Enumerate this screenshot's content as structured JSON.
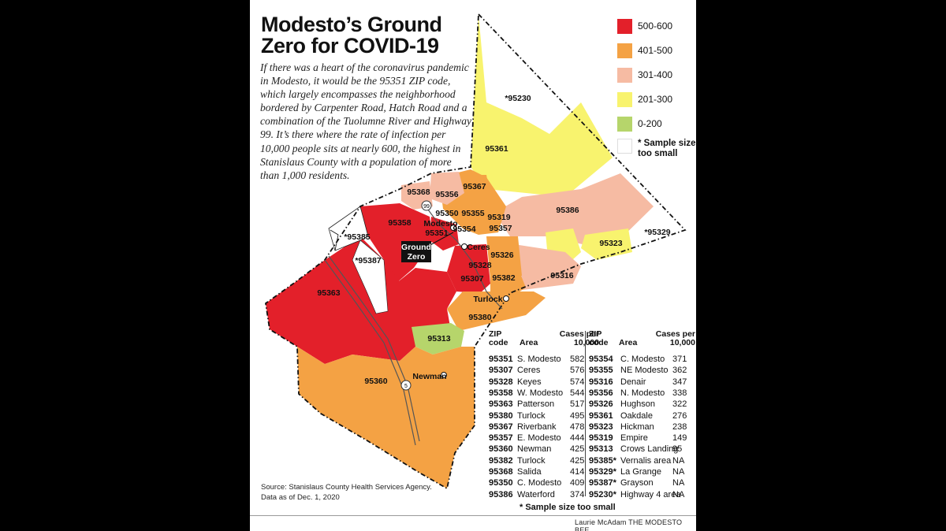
{
  "title_line1": "Modesto’s Ground",
  "title_line2": "Zero for COVID-19",
  "intro": "If there was a heart of the coronavirus pandemic in Modesto, it would be the 95351 ZIP code, which largely encompasses the neighborhood bordered by Carpenter Road, Hatch Road and a combination of the Tuolumne River and Highway 99. It’s there where the rate of infection per 10,000 people sits at nearly 600, the highest in Stanislaus County with a population of more than 1,000 residents.",
  "legend": [
    {
      "label": "500-600",
      "color": "#e3202a"
    },
    {
      "label": "401-500",
      "color": "#f4a244"
    },
    {
      "label": "301-400",
      "color": "#f6bba3"
    },
    {
      "label": "201-300",
      "color": "#f8f36e"
    },
    {
      "label": "0-200",
      "color": "#b6d56b"
    },
    {
      "label": "* Sample size too small",
      "color": "#ffffff"
    }
  ],
  "map": {
    "ground_zero_label": [
      "Ground",
      "Zero"
    ],
    "cities": [
      "Modesto",
      "Ceres",
      "Turlock",
      "Newman"
    ],
    "highways": [
      "99",
      "5"
    ],
    "zip_labels": [
      "*95230",
      "95361",
      "95368",
      "95356",
      "95367",
      "95350",
      "95355",
      "95319",
      "95386",
      "95358",
      "95351",
      "95354",
      "95357",
      "*95385",
      "*95387",
      "95326",
      "95323",
      "*95329",
      "95328",
      "95307",
      "95382",
      "95316",
      "95363",
      "95380",
      "95313",
      "95360"
    ]
  },
  "table": {
    "headers": {
      "zip": "ZIP code",
      "area": "Area",
      "cases": "Cases per 10,000"
    },
    "left": [
      {
        "zip": "95351",
        "area": "S. Modesto",
        "cases": "582"
      },
      {
        "zip": "95307",
        "area": "Ceres",
        "cases": "576"
      },
      {
        "zip": "95328",
        "area": "Keyes",
        "cases": "574"
      },
      {
        "zip": "95358",
        "area": "W. Modesto",
        "cases": "544"
      },
      {
        "zip": "95363",
        "area": "Patterson",
        "cases": "517"
      },
      {
        "zip": "95380",
        "area": "Turlock",
        "cases": "495"
      },
      {
        "zip": "95367",
        "area": "Riverbank",
        "cases": "478"
      },
      {
        "zip": "95357",
        "area": "E. Modesto",
        "cases": "444"
      },
      {
        "zip": "95360",
        "area": "Newman",
        "cases": "425"
      },
      {
        "zip": "95382",
        "area": "Turlock",
        "cases": "425"
      },
      {
        "zip": "95368",
        "area": "Salida",
        "cases": "414"
      },
      {
        "zip": "95350",
        "area": "C. Modesto",
        "cases": "409"
      },
      {
        "zip": "95386",
        "area": "Waterford",
        "cases": "374"
      }
    ],
    "right": [
      {
        "zip": "95354",
        "area": "C. Modesto",
        "cases": "371"
      },
      {
        "zip": "95355",
        "area": "NE Modesto",
        "cases": "362"
      },
      {
        "zip": "95316",
        "area": "Denair",
        "cases": "347"
      },
      {
        "zip": "95356",
        "area": "N. Modesto",
        "cases": "338"
      },
      {
        "zip": "95326",
        "area": "Hughson",
        "cases": "322"
      },
      {
        "zip": "95361",
        "area": "Oakdale",
        "cases": "276"
      },
      {
        "zip": "95323",
        "area": "Hickman",
        "cases": "238"
      },
      {
        "zip": "95319",
        "area": "Empire",
        "cases": "149"
      },
      {
        "zip": "95313",
        "area": "Crows Landing",
        "cases": "95"
      },
      {
        "zip": "95385*",
        "area": "Vernalis area",
        "cases": "NA"
      },
      {
        "zip": "95329*",
        "area": "La Grange",
        "cases": "NA"
      },
      {
        "zip": "95387*",
        "area": "Grayson",
        "cases": "NA"
      },
      {
        "zip": "95230*",
        "area": "Highway 4 area",
        "cases": "NA"
      }
    ]
  },
  "footnote": "* Sample size too small",
  "source_line1": "Source: Stanislaus County Health Services Agency.",
  "source_line2": "Data as of Dec. 1, 2020",
  "credit": "Laurie McAdam  THE MODESTO BEE"
}
